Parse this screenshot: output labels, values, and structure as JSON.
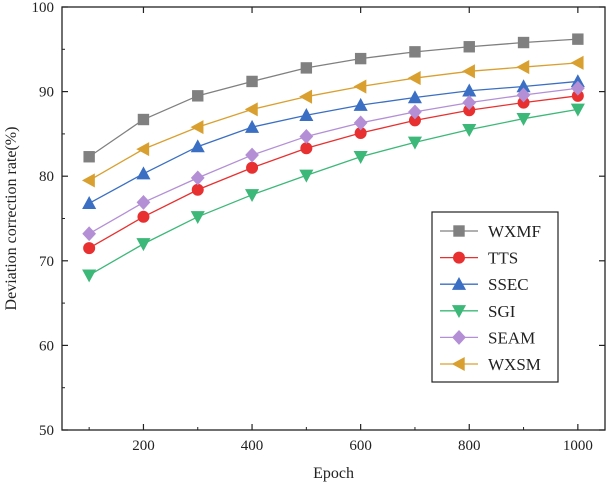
{
  "chart_data": {
    "type": "line",
    "xlabel": "Epoch",
    "ylabel": "Deviation correction rate(%)",
    "x": [
      100,
      200,
      300,
      400,
      500,
      600,
      700,
      800,
      900,
      1000
    ],
    "xlim": [
      50,
      1050
    ],
    "ylim": [
      50,
      100
    ],
    "xticks": [
      200,
      400,
      600,
      800,
      1000
    ],
    "yticks": [
      50,
      60,
      70,
      80,
      90,
      100
    ],
    "grid": false,
    "legend_position": "lower-right",
    "series": [
      {
        "name": "WXMF",
        "color": "#808080",
        "marker": "square",
        "values": [
          82.3,
          86.7,
          89.5,
          91.2,
          92.8,
          93.9,
          94.7,
          95.3,
          95.8,
          96.2
        ]
      },
      {
        "name": "TTS",
        "color": "#e83030",
        "marker": "circle",
        "values": [
          71.5,
          75.2,
          78.4,
          81.0,
          83.3,
          85.1,
          86.6,
          87.8,
          88.7,
          89.5
        ]
      },
      {
        "name": "SSEC",
        "color": "#3a6fc4",
        "marker": "triangle-up",
        "values": [
          76.8,
          80.3,
          83.5,
          85.8,
          87.2,
          88.4,
          89.3,
          90.1,
          90.6,
          91.2
        ]
      },
      {
        "name": "SGI",
        "color": "#3cb878",
        "marker": "triangle-down",
        "values": [
          68.3,
          72.0,
          75.2,
          77.8,
          80.1,
          82.3,
          84.0,
          85.5,
          86.8,
          87.9
        ]
      },
      {
        "name": "SEAM",
        "color": "#b48fd6",
        "marker": "diamond",
        "values": [
          73.2,
          76.9,
          79.8,
          82.5,
          84.7,
          86.3,
          87.6,
          88.7,
          89.6,
          90.4
        ]
      },
      {
        "name": "WXSM",
        "color": "#d9a030",
        "marker": "triangle-left",
        "values": [
          79.5,
          83.2,
          85.8,
          87.9,
          89.4,
          90.6,
          91.6,
          92.4,
          92.9,
          93.4
        ]
      }
    ]
  }
}
